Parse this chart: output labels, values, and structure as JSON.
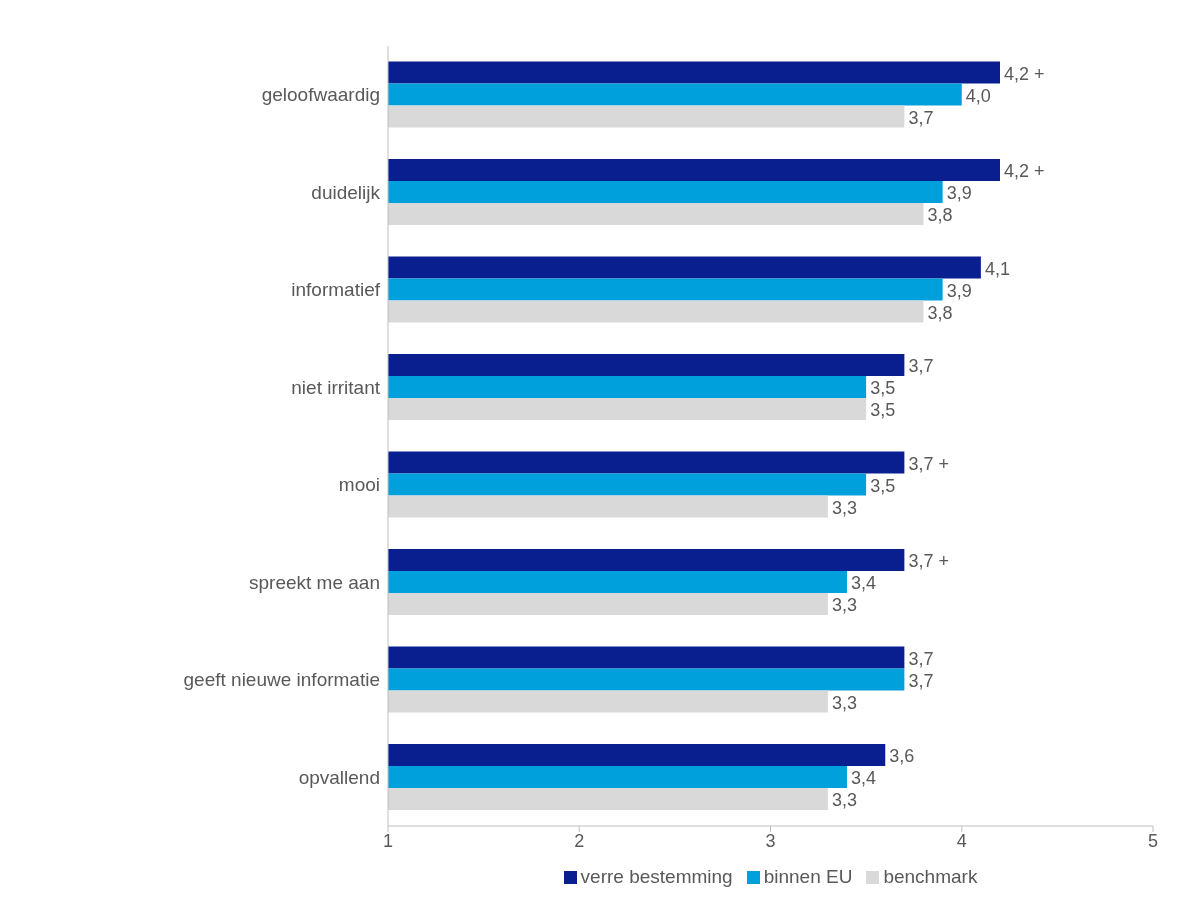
{
  "chart_data": {
    "type": "bar",
    "orientation": "horizontal",
    "categories": [
      "geloofwaardig",
      "duidelijk",
      "informatief",
      "niet irritant",
      "mooi",
      "spreekt me aan",
      "geeft nieuwe informatie",
      "opvallend"
    ],
    "series": [
      {
        "name": "verre bestemming",
        "color": "#0a1f8f",
        "values": [
          4.2,
          4.2,
          4.1,
          3.7,
          3.7,
          3.7,
          3.7,
          3.6
        ],
        "value_labels": [
          "4,2 +",
          "4,2 +",
          "4,1",
          "3,7",
          "3,7 +",
          "3,7 +",
          "3,7",
          "3,6"
        ]
      },
      {
        "name": "binnen EU",
        "color": "#00a0dc",
        "values": [
          4.0,
          3.9,
          3.9,
          3.5,
          3.5,
          3.4,
          3.7,
          3.4
        ],
        "value_labels": [
          "4,0",
          "3,9",
          "3,9",
          "3,5",
          "3,5",
          "3,4",
          "3,7",
          "3,4"
        ]
      },
      {
        "name": "benchmark",
        "color": "#d9d9d9",
        "values": [
          3.7,
          3.8,
          3.8,
          3.5,
          3.3,
          3.3,
          3.3,
          3.3
        ],
        "value_labels": [
          "3,7",
          "3,8",
          "3,8",
          "3,5",
          "3,3",
          "3,3",
          "3,3",
          "3,3"
        ]
      }
    ],
    "xlim": [
      1,
      5
    ],
    "xticks": [
      1,
      2,
      3,
      4,
      5
    ],
    "grid": false,
    "legend": "bottom"
  }
}
